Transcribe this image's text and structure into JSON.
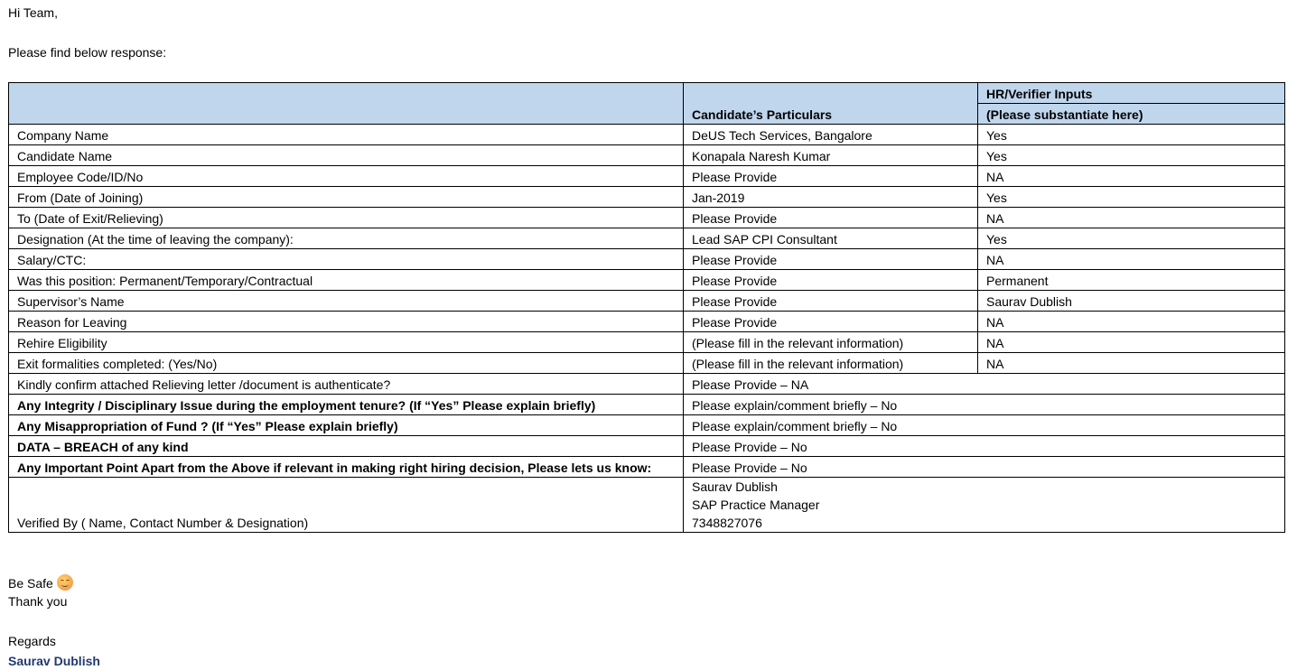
{
  "greeting": "Hi Team,",
  "intro": "Please find below response:",
  "table": {
    "header": {
      "col2": "Candidate’s Particulars",
      "col3_top": "HR/Verifier Inputs",
      "col3_bottom": "(Please substantiate here)"
    },
    "rows": [
      {
        "label": "Company Name",
        "particulars": "DeUS Tech Services, Bangalore",
        "input": "Yes"
      },
      {
        "label": "Candidate Name",
        "particulars": "Konapala Naresh Kumar",
        "input": "Yes"
      },
      {
        "label": "Employee Code/ID/No",
        "particulars": "Please Provide",
        "input": "NA"
      },
      {
        "label": "From (Date of Joining)",
        "particulars": "Jan-2019",
        "input": "Yes"
      },
      {
        "label": "To (Date of Exit/Relieving)",
        "particulars": "Please Provide",
        "input": " NA"
      },
      {
        "label": "Designation (At the time of leaving the company):",
        "particulars": "Lead SAP CPI Consultant",
        "input": " Yes"
      },
      {
        "label": "Salary/CTC:",
        "particulars": "Please Provide",
        "input": " NA"
      },
      {
        "label": "Was this position: Permanent/Temporary/Contractual",
        "particulars": "Please Provide",
        "input": " Permanent"
      },
      {
        "label": "Supervisor’s Name",
        "particulars": "Please Provide",
        "input": " Saurav Dublish"
      },
      {
        "label": "Reason for Leaving",
        "particulars": "Please Provide",
        "input": " NA"
      },
      {
        "label": "Rehire Eligibility",
        "particulars": "(Please fill in the relevant information)",
        "input": " NA"
      },
      {
        "label": "Exit formalities completed: (Yes/No)",
        "particulars": "(Please fill in the relevant information)",
        "input": " NA"
      }
    ],
    "merged_rows": [
      {
        "label": "Kindly confirm attached Relieving letter /document is authenticate?",
        "value": "Please Provide – NA",
        "bold": false
      },
      {
        "label": "Any Integrity / Disciplinary Issue during the employment tenure? (If “Yes” Please explain briefly)",
        "value": "Please explain/comment briefly – No",
        "bold": true
      },
      {
        "label": "Any Misappropriation of Fund ? (If “Yes” Please explain briefly)",
        "value": "Please explain/comment briefly – No",
        "bold": true
      },
      {
        "label": "DATA – BREACH of any kind",
        "value": "Please Provide – No",
        "bold": true
      },
      {
        "label": "Any Important Point Apart from the Above if relevant in making right hiring decision, Please lets us know:",
        "value": "Please Provide – No",
        "bold": true
      }
    ],
    "verified": {
      "label": "Verified By ( Name, Contact Number & Designation)",
      "name": "Saurav Dublish",
      "designation": "SAP Practice Manager",
      "contact": "7348827076"
    }
  },
  "closing": {
    "be_safe": "Be Safe",
    "emoji_icon": "smiling-face-emoji",
    "thanks": "Thank you",
    "regards": "Regards",
    "signature": "Saurav Dublish",
    "signature_color": "#1f3a6e"
  },
  "colors": {
    "header_bg": "#c0d6ed"
  }
}
